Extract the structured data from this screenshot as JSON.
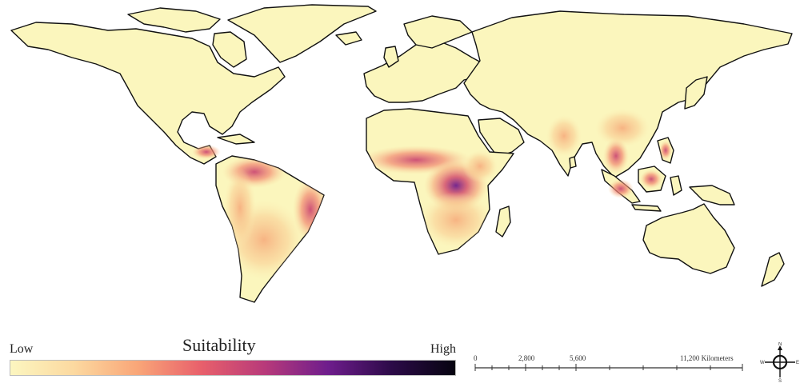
{
  "legend": {
    "title": "Suitability",
    "low_label": "Low",
    "high_label": "High",
    "gradient_colors": [
      "#fcf6c0",
      "#fcd9a0",
      "#f9a678",
      "#e8606b",
      "#b83a7a",
      "#6e1d8c",
      "#2c0a48",
      "#060410"
    ]
  },
  "scale_bar": {
    "ticks": [
      "0",
      "2,800",
      "5,600",
      "11,200 Kilometers"
    ]
  },
  "compass": {
    "north": "N",
    "south": "S",
    "east": "E",
    "west": "W"
  },
  "map": {
    "land_color": "#fbf6bd",
    "outline_color": "#111111"
  }
}
